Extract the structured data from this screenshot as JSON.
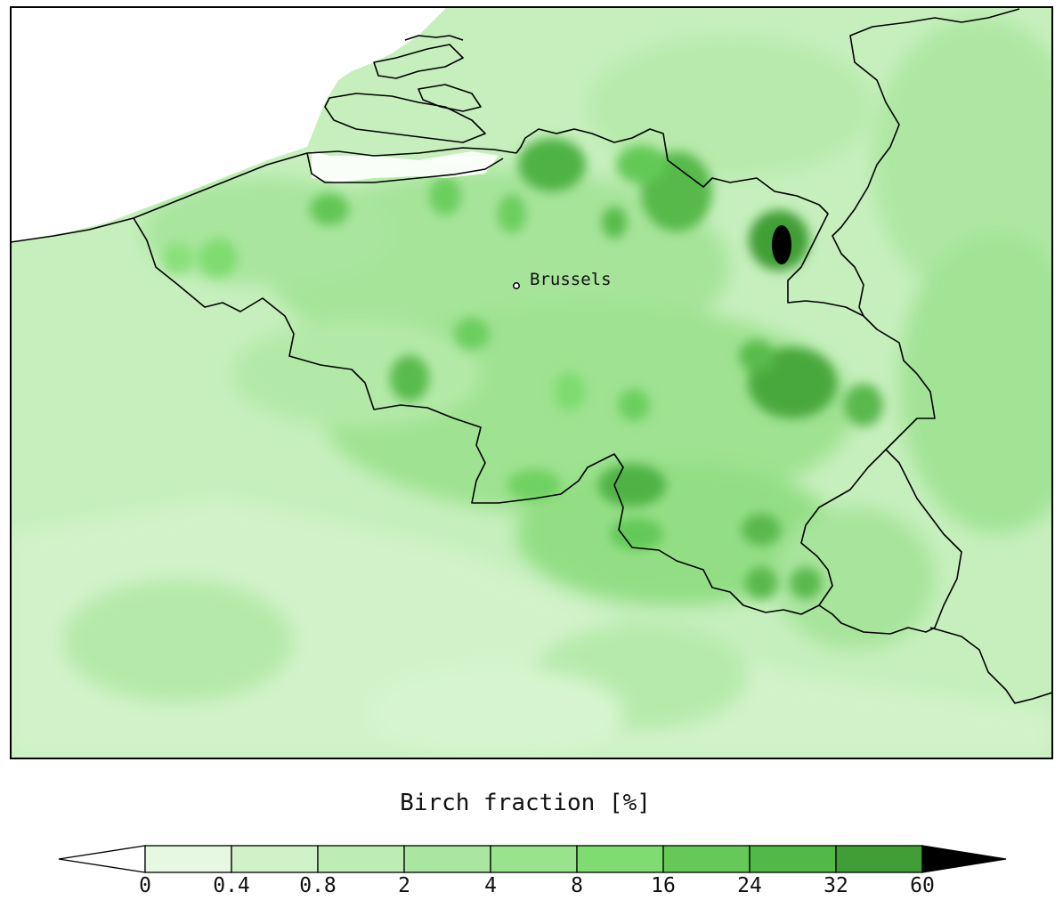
{
  "map": {
    "city": {
      "name": "Brussels"
    },
    "colors": {
      "sea": "#ffffff",
      "border": "#000000"
    }
  },
  "legend": {
    "title": "Birch fraction [%]",
    "ticks": [
      "0",
      "0.4",
      "0.8",
      "2",
      "4",
      "8",
      "16",
      "24",
      "32",
      "60"
    ],
    "colors": [
      "#e6f8e1",
      "#d0f2c8",
      "#bdecb4",
      "#a9e69f",
      "#98e38b",
      "#7fdc70",
      "#64c957",
      "#52b846",
      "#3f9f36"
    ],
    "under_color": "#ffffff",
    "over_color": "#000000"
  }
}
